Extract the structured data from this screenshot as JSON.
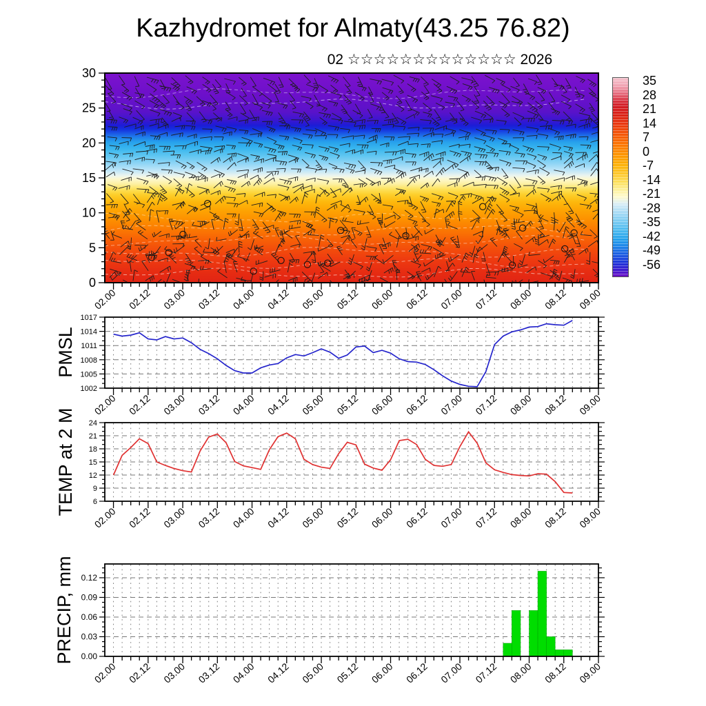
{
  "title": "Kazhydromet for Almaty(43.25 76.82)",
  "subtitle": "02 ☆☆☆☆☆☆☆☆☆☆☆☆☆ 2026",
  "colors": {
    "pmsl_line": "#2424cc",
    "temp_line": "#e03030",
    "precip_bar": "#00dd00",
    "grid": "#777777",
    "axis": "#000000"
  },
  "chart_data": [
    {
      "type": "heatmap",
      "name": "wind-temperature-time-height-section",
      "description": "time-height cross-section shaded by temperature with overlaid wind barbs",
      "ylim": [
        0,
        30
      ],
      "y_ticks": [
        0,
        5,
        10,
        15,
        20,
        25,
        30
      ],
      "x_tick_labels": [
        "02.00",
        "02.12",
        "03.00",
        "03.12",
        "04.00",
        "04.12",
        "05.00",
        "05.12",
        "06.00",
        "06.12",
        "07.00",
        "07.12",
        "08.00",
        "08.12",
        "09.00"
      ],
      "x_minor_step_hours": 3,
      "x_major_step_hours": 12,
      "colorbar_tick_labels": [
        "35",
        "28",
        "21",
        "14",
        "7",
        "0",
        "-7",
        "-14",
        "-21",
        "-28",
        "-35",
        "-42",
        "-49",
        "-56"
      ],
      "wind_barbs": "decorative-procedural",
      "field_gradient": [
        {
          "pos": 0.0,
          "color": "#7c12cd"
        },
        {
          "pos": 0.1,
          "color": "#6d10ca"
        },
        {
          "pos": 0.185,
          "color": "#5a12c9"
        },
        {
          "pos": 0.225,
          "color": "#3b16d0"
        },
        {
          "pos": 0.25,
          "color": "#1c1cd6"
        },
        {
          "pos": 0.268,
          "color": "#1430de"
        },
        {
          "pos": 0.285,
          "color": "#1a52e4"
        },
        {
          "pos": 0.305,
          "color": "#1f7cea"
        },
        {
          "pos": 0.33,
          "color": "#27a2ec"
        },
        {
          "pos": 0.36,
          "color": "#39b6ee"
        },
        {
          "pos": 0.395,
          "color": "#5fc6f1"
        },
        {
          "pos": 0.43,
          "color": "#8dd4f5"
        },
        {
          "pos": 0.465,
          "color": "#c0e6f8"
        },
        {
          "pos": 0.49,
          "color": "#ecf5ee"
        },
        {
          "pos": 0.505,
          "color": "#fdf8cf"
        },
        {
          "pos": 0.53,
          "color": "#fdf0a0"
        },
        {
          "pos": 0.555,
          "color": "#fde15a"
        },
        {
          "pos": 0.58,
          "color": "#fdcf2b"
        },
        {
          "pos": 0.615,
          "color": "#fdb80c"
        },
        {
          "pos": 0.655,
          "color": "#fda403"
        },
        {
          "pos": 0.7,
          "color": "#fd9000"
        },
        {
          "pos": 0.745,
          "color": "#fb7a02"
        },
        {
          "pos": 0.79,
          "color": "#f86306"
        },
        {
          "pos": 0.84,
          "color": "#f34d0b"
        },
        {
          "pos": 0.89,
          "color": "#ee3b10"
        },
        {
          "pos": 0.945,
          "color": "#e72d12"
        },
        {
          "pos": 1.0,
          "color": "#e12414"
        }
      ],
      "colorbar_gradient": [
        {
          "pos": 0.0,
          "color": "#f6c3ce"
        },
        {
          "pos": 0.04,
          "color": "#f0a3b2"
        },
        {
          "pos": 0.075,
          "color": "#e77284"
        },
        {
          "pos": 0.11,
          "color": "#db3a48"
        },
        {
          "pos": 0.145,
          "color": "#d21a22"
        },
        {
          "pos": 0.19,
          "color": "#dc2416"
        },
        {
          "pos": 0.235,
          "color": "#ea3a10"
        },
        {
          "pos": 0.285,
          "color": "#f45708"
        },
        {
          "pos": 0.335,
          "color": "#fb7502"
        },
        {
          "pos": 0.385,
          "color": "#fd9400"
        },
        {
          "pos": 0.435,
          "color": "#fdb007"
        },
        {
          "pos": 0.48,
          "color": "#fdc62a"
        },
        {
          "pos": 0.525,
          "color": "#fde05e"
        },
        {
          "pos": 0.565,
          "color": "#fdf19e"
        },
        {
          "pos": 0.6,
          "color": "#fefbd0"
        },
        {
          "pos": 0.635,
          "color": "#d9edf6"
        },
        {
          "pos": 0.675,
          "color": "#abdcf5"
        },
        {
          "pos": 0.72,
          "color": "#7cccf2"
        },
        {
          "pos": 0.765,
          "color": "#4ebbef"
        },
        {
          "pos": 0.81,
          "color": "#27a4ec"
        },
        {
          "pos": 0.85,
          "color": "#1f83e8"
        },
        {
          "pos": 0.89,
          "color": "#1d5ce2"
        },
        {
          "pos": 0.93,
          "color": "#1e36da"
        },
        {
          "pos": 0.965,
          "color": "#3a1cd0"
        },
        {
          "pos": 1.0,
          "color": "#6e10c6"
        }
      ]
    },
    {
      "type": "line",
      "ylabel": "PMSL",
      "ylim": [
        1002,
        1017
      ],
      "y_ticks": [
        1002,
        1005,
        1008,
        1011,
        1014,
        1017
      ],
      "y_tick_labels": [
        "1002",
        "1005",
        "1008",
        "1011",
        "1014",
        "1017"
      ],
      "x_start_label": "02.00",
      "x_step_hours": 3,
      "values": [
        1013.4,
        1013.0,
        1013.2,
        1013.7,
        1012.4,
        1012.2,
        1012.9,
        1012.4,
        1012.6,
        1011.6,
        1010.2,
        1009.3,
        1008.2,
        1006.8,
        1005.7,
        1005.2,
        1005.2,
        1006.3,
        1006.9,
        1007.2,
        1008.4,
        1009.1,
        1008.8,
        1009.5,
        1010.3,
        1009.6,
        1008.3,
        1009.0,
        1010.7,
        1010.9,
        1009.5,
        1010.0,
        1009.4,
        1008.2,
        1007.6,
        1007.5,
        1007.0,
        1005.9,
        1004.6,
        1003.5,
        1002.8,
        1002.4,
        1002.3,
        1005.5,
        1011.2,
        1013.0,
        1013.9,
        1014.3,
        1014.9,
        1015.0,
        1015.6,
        1015.4,
        1015.3,
        1016.3
      ]
    },
    {
      "type": "line",
      "ylabel": "TEMP at 2 M",
      "ylim": [
        6,
        24
      ],
      "y_ticks": [
        6,
        9,
        12,
        15,
        18,
        21,
        24
      ],
      "y_tick_labels": [
        "6",
        "9",
        "12",
        "15",
        "18",
        "21",
        "24"
      ],
      "x_start_label": "02.00",
      "x_step_hours": 3,
      "values": [
        12.0,
        16.5,
        18.3,
        20.3,
        19.2,
        15.0,
        14.2,
        13.5,
        13.0,
        12.7,
        17.5,
        20.7,
        21.4,
        19.4,
        15.1,
        14.1,
        13.7,
        13.3,
        17.8,
        20.8,
        21.6,
        20.3,
        15.6,
        14.4,
        13.8,
        13.5,
        16.9,
        19.5,
        18.9,
        14.5,
        13.6,
        13.1,
        15.5,
        19.9,
        20.2,
        19.0,
        15.6,
        14.2,
        14.0,
        14.4,
        18.5,
        21.9,
        19.3,
        14.8,
        13.2,
        12.6,
        12.1,
        11.9,
        11.8,
        12.3,
        12.2,
        10.5,
        8.0,
        7.9
      ]
    },
    {
      "type": "bar",
      "ylabel": "PRECIP, mm",
      "ylim": [
        0,
        0.141
      ],
      "y_ticks": [
        0,
        0.03,
        0.06,
        0.09,
        0.12
      ],
      "y_tick_labels": [
        "0.00",
        "0.03",
        "0.06",
        "0.09",
        "0.12"
      ],
      "x_start_label": "02.00",
      "x_step_hours": 3,
      "values": [
        0,
        0,
        0,
        0,
        0,
        0,
        0,
        0,
        0,
        0,
        0,
        0,
        0,
        0,
        0,
        0,
        0,
        0,
        0,
        0,
        0,
        0,
        0,
        0,
        0,
        0,
        0,
        0,
        0,
        0,
        0,
        0,
        0,
        0,
        0,
        0,
        0,
        0,
        0,
        0,
        0,
        0,
        0,
        0,
        0,
        0.02,
        0.07,
        0,
        0.07,
        0.13,
        0.03,
        0.01,
        0.01
      ]
    }
  ]
}
